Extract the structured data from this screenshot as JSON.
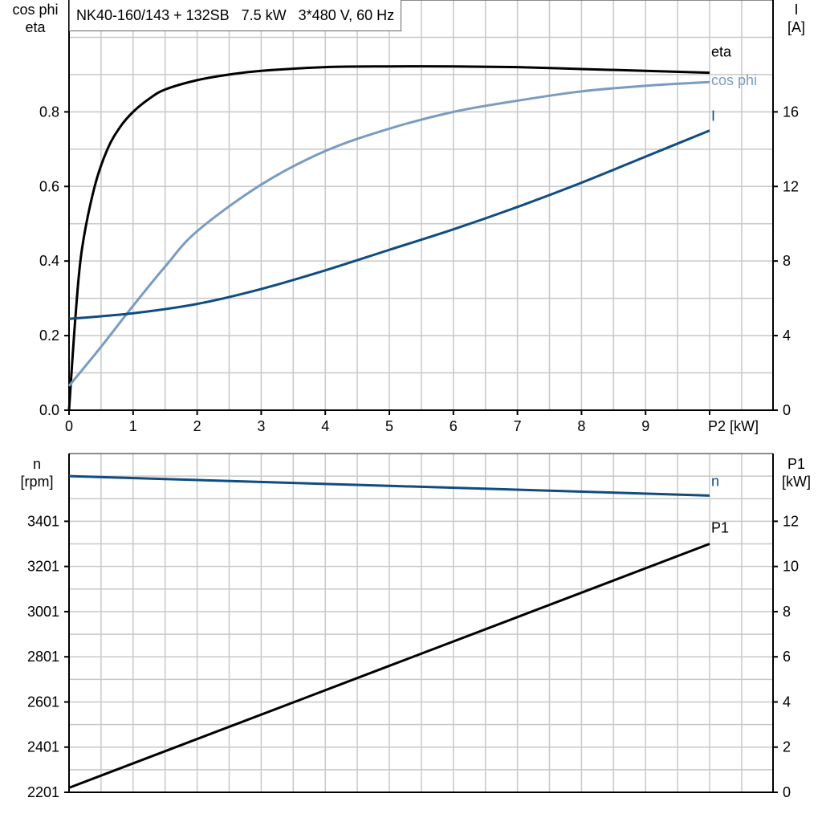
{
  "title": "NK40-160/143 + 132SB   7.5 kW   3*480 V, 60 Hz",
  "colors": {
    "eta": "#000000",
    "cos_phi": "#7a9cbf",
    "I": "#0f4c81",
    "n": "#0f4c81",
    "P1": "#000000",
    "grid": "#c8c8c8"
  },
  "chart_data": [
    {
      "type": "line",
      "xlabel": "P2 [kW]",
      "x_ticks": [
        "0",
        "1",
        "2",
        "3",
        "4",
        "5",
        "6",
        "7",
        "8",
        "9"
      ],
      "xlim": [
        0,
        11
      ],
      "ylabel_left": [
        "cos phi",
        "eta"
      ],
      "ylim_left": [
        0,
        1.1
      ],
      "yticks_left": [
        "0.0",
        "0.2",
        "0.4",
        "0.6",
        "0.8"
      ],
      "ylabel_right": [
        "I",
        "[A]"
      ],
      "ylim_right": [
        0,
        22
      ],
      "yticks_right": [
        "0",
        "4",
        "8",
        "12",
        "16"
      ],
      "grid": true,
      "series": [
        {
          "name": "eta",
          "axis": "left",
          "x": [
            0,
            0.1,
            0.2,
            0.4,
            0.6,
            0.8,
            1,
            1.25,
            1.5,
            2,
            2.5,
            3,
            4,
            5,
            6,
            7,
            8,
            9,
            10
          ],
          "y": [
            0,
            0.25,
            0.43,
            0.6,
            0.7,
            0.76,
            0.8,
            0.835,
            0.86,
            0.885,
            0.9,
            0.91,
            0.92,
            0.922,
            0.922,
            0.92,
            0.915,
            0.91,
            0.905
          ]
        },
        {
          "name": "cos phi",
          "axis": "left",
          "x": [
            0,
            0.5,
            1,
            1.5,
            2,
            3,
            4,
            5,
            6,
            7,
            8,
            9,
            10
          ],
          "y": [
            0.065,
            0.17,
            0.28,
            0.385,
            0.48,
            0.605,
            0.695,
            0.755,
            0.8,
            0.83,
            0.855,
            0.87,
            0.88
          ]
        },
        {
          "name": "I",
          "axis": "right",
          "x": [
            0,
            1,
            2,
            3,
            4,
            5,
            6,
            7,
            8,
            9,
            10
          ],
          "y": [
            4.9,
            5.2,
            5.7,
            6.5,
            7.5,
            8.6,
            9.7,
            10.9,
            12.2,
            13.6,
            15.0
          ]
        }
      ]
    },
    {
      "type": "line",
      "xlim": [
        0,
        11
      ],
      "ylabel_left": [
        "n",
        "[rpm]"
      ],
      "ylim_left": [
        2201,
        3701
      ],
      "yticks_left": [
        "2201",
        "2401",
        "2601",
        "2801",
        "3001",
        "3201",
        "3401"
      ],
      "ylabel_right": [
        "P1",
        "[kW]"
      ],
      "ylim_right": [
        0,
        15
      ],
      "yticks_right": [
        "0",
        "2",
        "4",
        "6",
        "8",
        "10",
        "12"
      ],
      "grid": true,
      "series": [
        {
          "name": "n",
          "axis": "left",
          "x": [
            0,
            10
          ],
          "y": [
            3601,
            3515
          ]
        },
        {
          "name": "P1",
          "axis": "right",
          "x": [
            0,
            10
          ],
          "y": [
            0.2,
            11.0
          ]
        }
      ]
    }
  ]
}
